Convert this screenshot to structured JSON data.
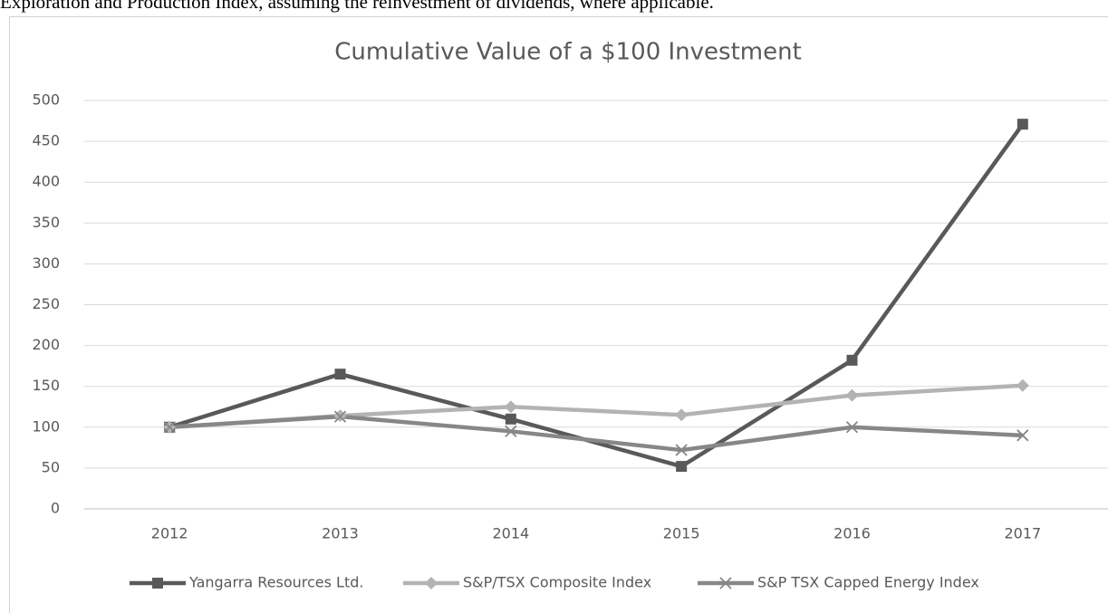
{
  "context_text": "Exploration and Production Index, assuming the reinvestment of dividends, where applicable.",
  "chart_data": {
    "type": "line",
    "title": "Cumulative Value of a $100 Investment",
    "categories": [
      "2012",
      "2013",
      "2014",
      "2015",
      "2016",
      "2017"
    ],
    "series": [
      {
        "name": "Yangarra Resources Ltd.",
        "color": "#595959",
        "marker": "square",
        "values": [
          100,
          165,
          110,
          52,
          182,
          471
        ]
      },
      {
        "name": "S&P/TSX Composite Index",
        "color": "#b3b3b3",
        "marker": "diamond",
        "values": [
          100,
          114,
          125,
          115,
          139,
          151
        ]
      },
      {
        "name": "S&P TSX Capped Energy Index",
        "color": "#878787",
        "marker": "x",
        "values": [
          100,
          113,
          95,
          72,
          100,
          90
        ]
      }
    ],
    "ylim": [
      0,
      500
    ],
    "yticks": [
      0,
      50,
      100,
      150,
      200,
      250,
      300,
      350,
      400,
      450,
      500
    ],
    "grid": true,
    "legend": "bottom"
  }
}
